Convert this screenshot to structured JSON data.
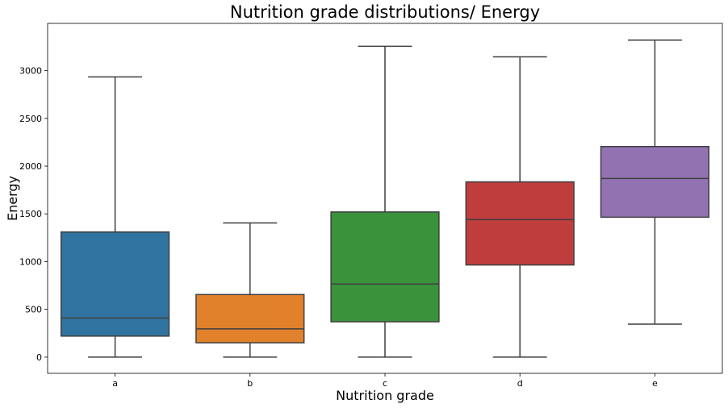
{
  "chart_data": {
    "type": "box",
    "title": "Nutrition grade distributions/ Energy",
    "xlabel": "Nutrition grade",
    "ylabel": "Energy",
    "categories": [
      "a",
      "b",
      "c",
      "d",
      "e"
    ],
    "boxes": [
      {
        "category": "a",
        "whisker_low": 0,
        "q1": 220,
        "median": 410,
        "q3": 1310,
        "whisker_high": 2935,
        "color": "#3274a1"
      },
      {
        "category": "b",
        "whisker_low": 0,
        "q1": 150,
        "median": 295,
        "q3": 655,
        "whisker_high": 1405,
        "color": "#e1812c"
      },
      {
        "category": "c",
        "whisker_low": 0,
        "q1": 370,
        "median": 765,
        "q3": 1520,
        "whisker_high": 3255,
        "color": "#3a923a"
      },
      {
        "category": "d",
        "whisker_low": 0,
        "q1": 965,
        "median": 1440,
        "q3": 1835,
        "whisker_high": 3145,
        "color": "#c03d3e"
      },
      {
        "category": "e",
        "whisker_low": 345,
        "q1": 1465,
        "median": 1870,
        "q3": 2205,
        "whisker_high": 3320,
        "color": "#9372b2"
      }
    ],
    "yticks": [
      0,
      500,
      1000,
      1500,
      2000,
      2500,
      3000
    ],
    "ylim": [
      -170,
      3495
    ],
    "grid": false,
    "legend": "none"
  }
}
